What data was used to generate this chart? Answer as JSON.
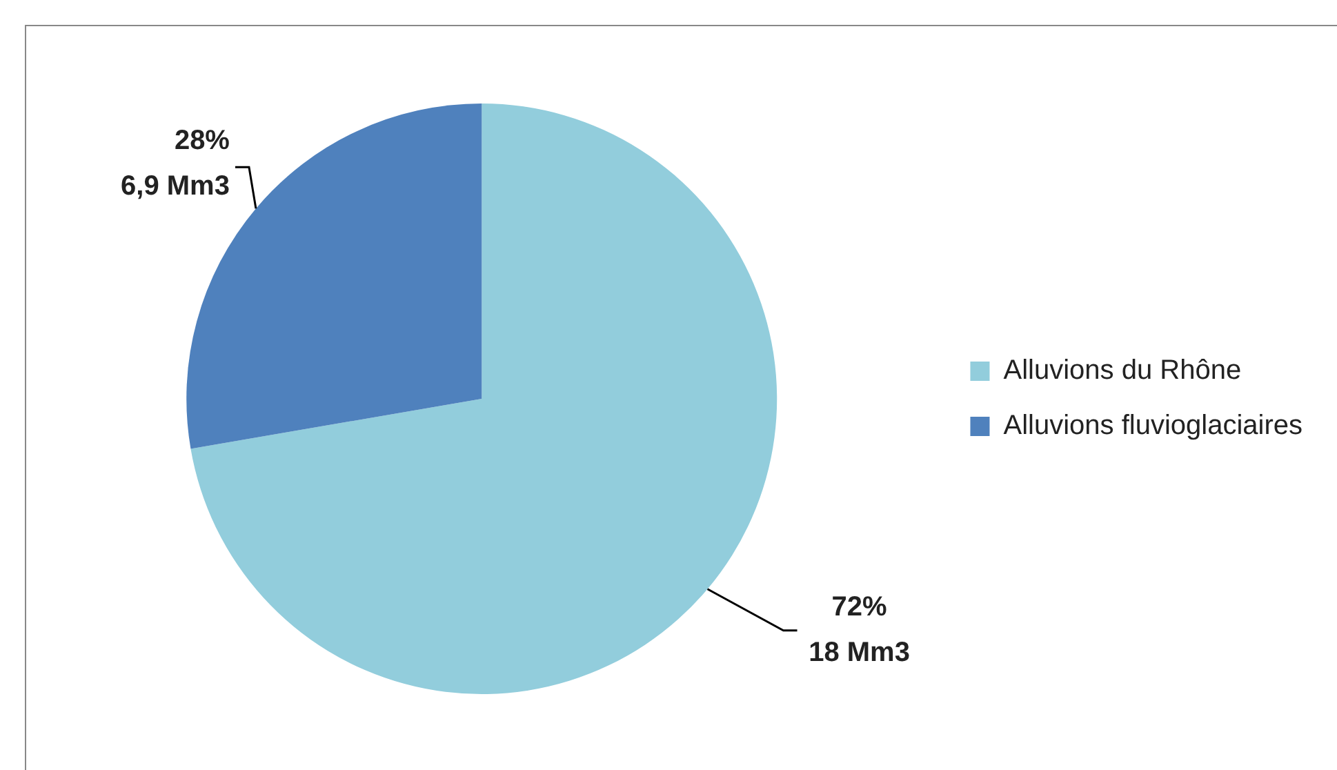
{
  "chart_data": {
    "type": "pie",
    "categories": [
      "Alluvions du Rhône",
      "Alluvions fluvioglaciaires"
    ],
    "values": [
      18,
      6.9
    ],
    "colors": [
      "#92cddc",
      "#4f81bd"
    ],
    "value_labels": [
      "72%\n18 Mm3",
      "28%\n6,9 Mm3"
    ],
    "legend": "right"
  }
}
